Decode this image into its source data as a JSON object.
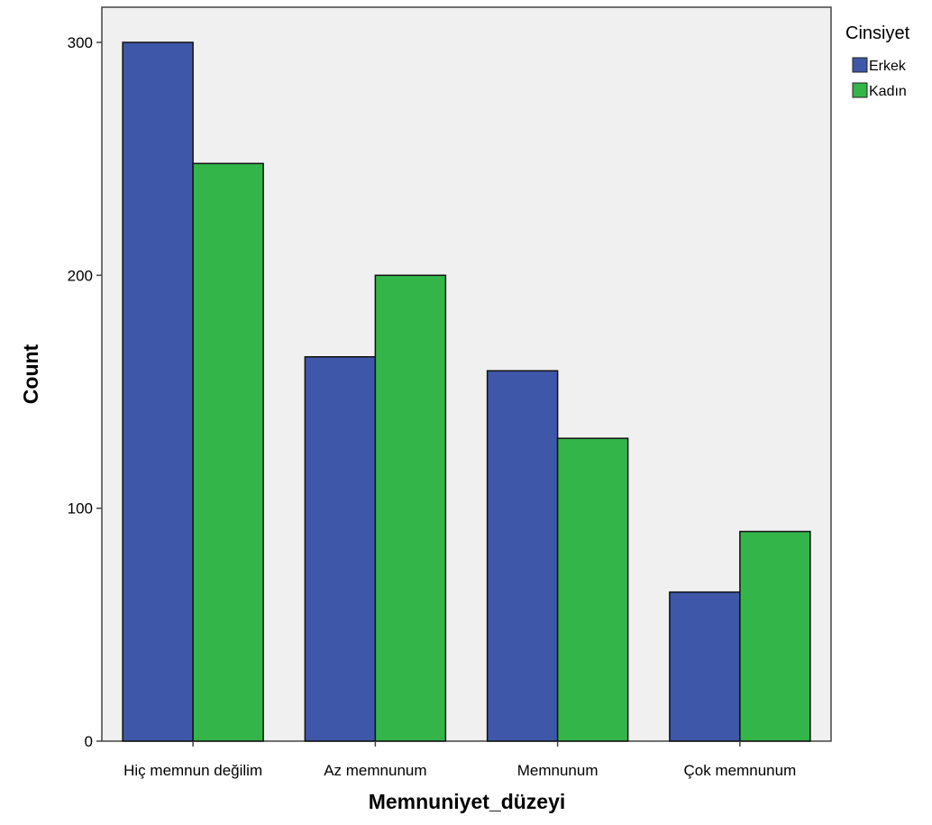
{
  "chart_data": {
    "type": "bar",
    "title": "",
    "xlabel": "Memnuniyet_düzeyi",
    "ylabel": "Count",
    "categories": [
      "Hiç memnun değilim",
      "Az memnunum",
      "Memnunum",
      "Çok memnunum"
    ],
    "series": [
      {
        "name": "Erkek",
        "color": "#3f57a8",
        "values": [
          300,
          165,
          159,
          64
        ]
      },
      {
        "name": "Kadın",
        "color": "#33b54a",
        "values": [
          248,
          200,
          130,
          90
        ]
      }
    ],
    "ylim": [
      0,
      300
    ],
    "yticks": [
      0,
      100,
      200,
      300
    ],
    "legend": {
      "title": "Cinsiyet",
      "position": "top-right"
    },
    "plot_background": "#f0f0f0",
    "grid": false
  }
}
